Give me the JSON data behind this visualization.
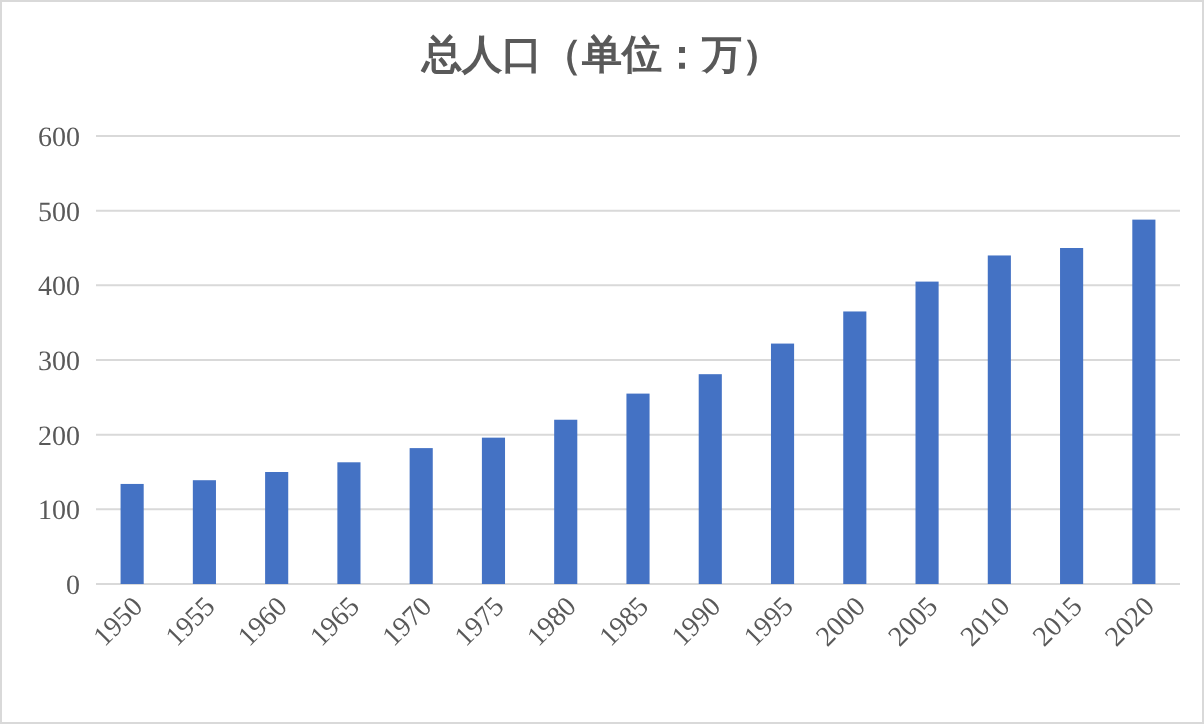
{
  "chart_data": {
    "type": "bar",
    "title": "总人口（单位：万）",
    "categories": [
      "1950",
      "1955",
      "1960",
      "1965",
      "1970",
      "1975",
      "1980",
      "1985",
      "1990",
      "1995",
      "2000",
      "2005",
      "2010",
      "2015",
      "2020"
    ],
    "values": [
      134,
      139,
      150,
      163,
      182,
      196,
      220,
      255,
      281,
      322,
      365,
      405,
      440,
      450,
      488
    ],
    "color": "#4472c4",
    "ylim": [
      0,
      600
    ],
    "yticks": [
      0,
      100,
      200,
      300,
      400,
      500,
      600
    ],
    "grid": "y"
  }
}
